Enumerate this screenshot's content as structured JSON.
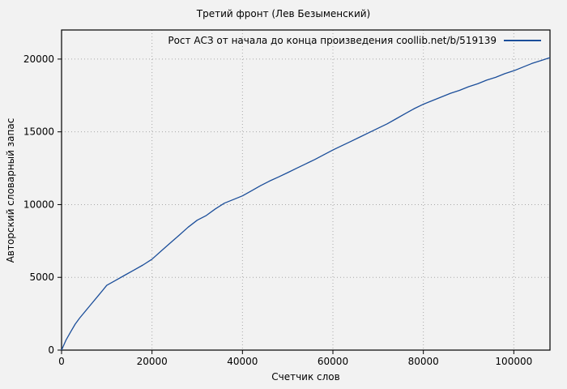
{
  "page": {
    "background": "#f2f2f2",
    "text_color": "#000000"
  },
  "chart_data": {
    "type": "line",
    "title": "Третий фронт (Лев Безыменский)",
    "xlabel": "Счетчик слов",
    "ylabel": "Авторский словарный запас",
    "xlim": [
      0,
      108000
    ],
    "ylim": [
      0,
      22000
    ],
    "xticks": [
      0,
      20000,
      40000,
      60000,
      80000,
      100000
    ],
    "yticks": [
      0,
      5000,
      10000,
      15000,
      20000
    ],
    "grid": "dotted",
    "grid_color": "#a8a8a8",
    "axis_color": "#000000",
    "legend_position": "top-right-inside",
    "legend": [
      {
        "label": "Рост АСЗ от начала до конца произведения  coollib.net/b/519139",
        "color": "#1b4e9a"
      }
    ],
    "series": [
      {
        "name": "Рост АСЗ от начала до конца произведения  coollib.net/b/519139",
        "color": "#1b4e9a",
        "x": [
          0,
          1000,
          2000,
          3000,
          4000,
          6000,
          8000,
          10000,
          12000,
          14000,
          16000,
          18000,
          20000,
          22000,
          24000,
          26000,
          28000,
          30000,
          32000,
          34000,
          36000,
          38000,
          40000,
          42000,
          44000,
          46000,
          48000,
          50000,
          52000,
          54000,
          56000,
          58000,
          60000,
          62000,
          64000,
          66000,
          68000,
          70000,
          72000,
          74000,
          76000,
          78000,
          80000,
          82000,
          84000,
          86000,
          88000,
          90000,
          92000,
          94000,
          96000,
          98000,
          100000,
          102000,
          104000,
          106000,
          108000
        ],
        "y": [
          0,
          700,
          1250,
          1780,
          2200,
          2950,
          3700,
          4450,
          4800,
          5150,
          5500,
          5850,
          6250,
          6800,
          7350,
          7900,
          8450,
          8930,
          9250,
          9700,
          10100,
          10350,
          10600,
          10950,
          11300,
          11620,
          11900,
          12200,
          12500,
          12800,
          13100,
          13430,
          13750,
          14050,
          14350,
          14650,
          14950,
          15250,
          15550,
          15900,
          16250,
          16600,
          16900,
          17150,
          17400,
          17650,
          17850,
          18100,
          18300,
          18550,
          18750,
          19000,
          19200,
          19450,
          19700,
          19900,
          20100
        ]
      }
    ]
  }
}
